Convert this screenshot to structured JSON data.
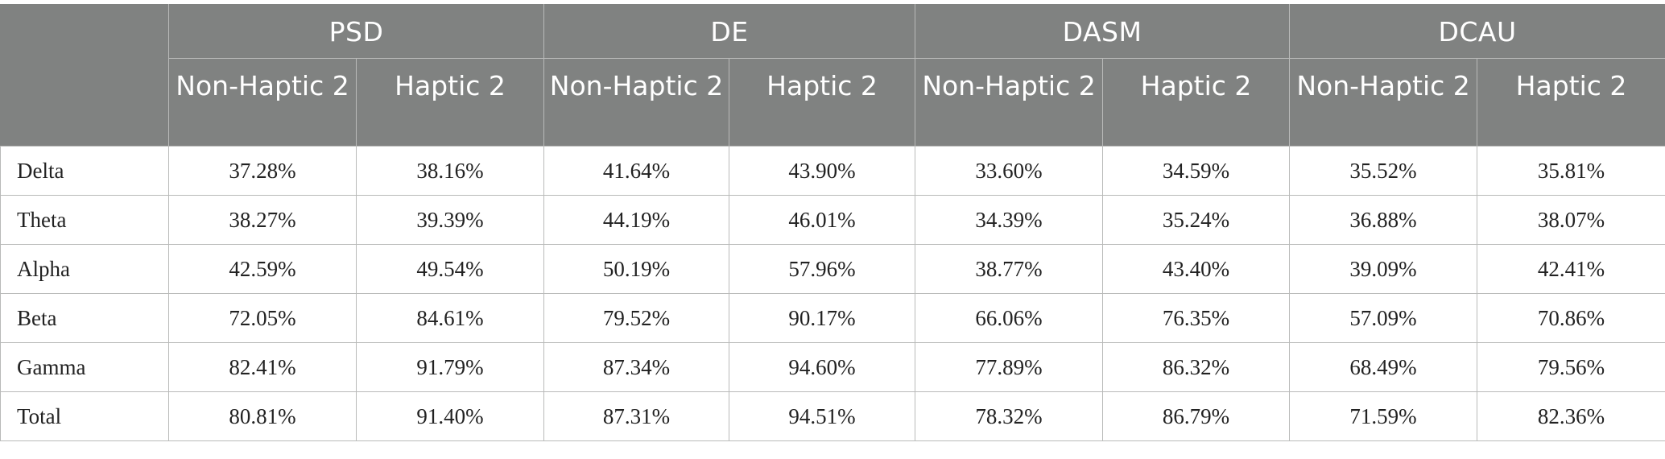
{
  "table": {
    "groups": [
      "PSD",
      "DE",
      "DASM",
      "DCAU"
    ],
    "subheaders": [
      "Non-Haptic 2",
      "Haptic 2"
    ],
    "rows": [
      {
        "label": "Delta",
        "values": [
          "37.28%",
          "38.16%",
          "41.64%",
          "43.90%",
          "33.60%",
          "34.59%",
          "35.52%",
          "35.81%"
        ]
      },
      {
        "label": "Theta",
        "values": [
          "38.27%",
          "39.39%",
          "44.19%",
          "46.01%",
          "34.39%",
          "35.24%",
          "36.88%",
          "38.07%"
        ]
      },
      {
        "label": "Alpha",
        "values": [
          "42.59%",
          "49.54%",
          "50.19%",
          "57.96%",
          "38.77%",
          "43.40%",
          "39.09%",
          "42.41%"
        ]
      },
      {
        "label": "Beta",
        "values": [
          "72.05%",
          "84.61%",
          "79.52%",
          "90.17%",
          "66.06%",
          "76.35%",
          "57.09%",
          "70.86%"
        ]
      },
      {
        "label": "Gamma",
        "values": [
          "82.41%",
          "91.79%",
          "87.34%",
          "94.60%",
          "77.89%",
          "86.32%",
          "68.49%",
          "79.56%"
        ]
      },
      {
        "label": "Total",
        "values": [
          "80.81%",
          "91.40%",
          "87.31%",
          "94.51%",
          "78.32%",
          "86.79%",
          "71.59%",
          "82.36%"
        ]
      }
    ]
  },
  "colors": {
    "header_bg": "#808281",
    "header_text": "#ffffff",
    "border": "#b9bab9"
  }
}
